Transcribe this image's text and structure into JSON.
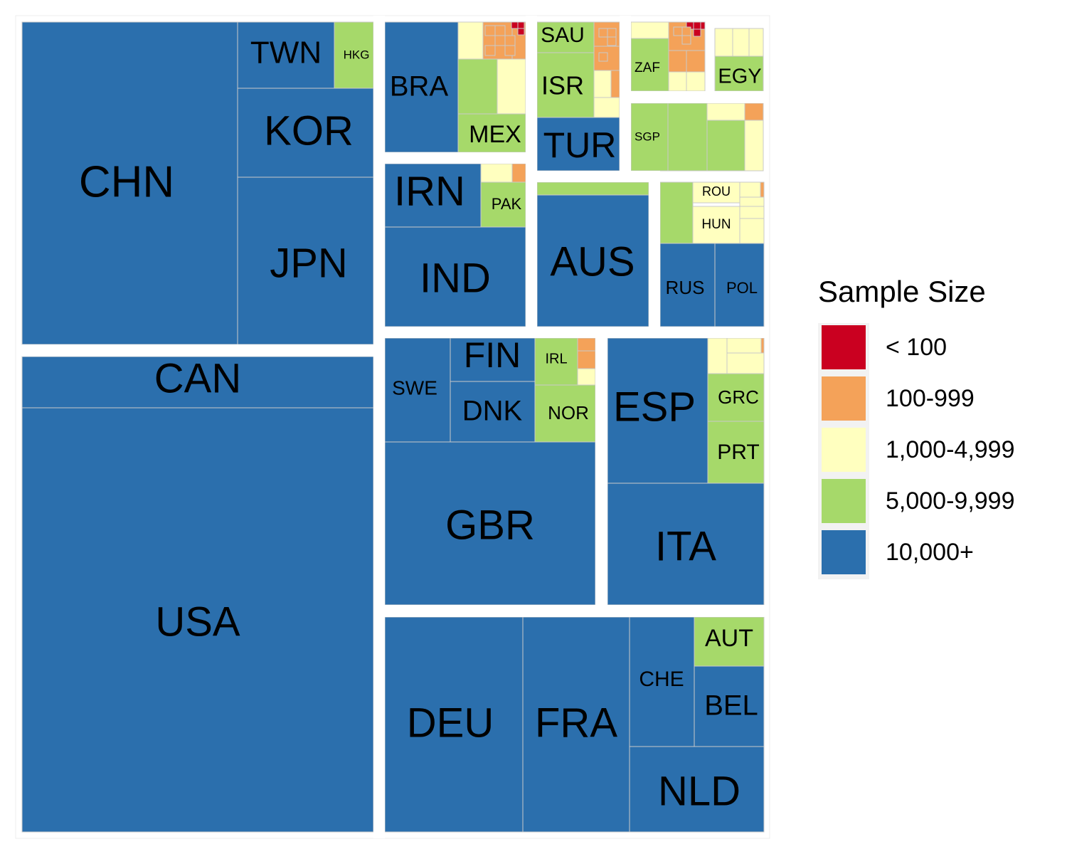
{
  "chart_data": {
    "type": "treemap",
    "legend": {
      "title": "Sample Size",
      "position": "right",
      "classes": [
        {
          "label": "< 100",
          "color": "#ca0020"
        },
        {
          "label": "100-999",
          "color": "#f4a259"
        },
        {
          "label": "1,000-4,999",
          "color": "#ffffbf"
        },
        {
          "label": "5,000-9,999",
          "color": "#a6d96a"
        },
        {
          "label": "10,000+",
          "color": "#2b6fad"
        }
      ]
    },
    "labeled_tiles": [
      {
        "name": "CHN",
        "class": "10,000+"
      },
      {
        "name": "TWN",
        "class": "10,000+"
      },
      {
        "name": "HKG",
        "class": "5,000-9,999"
      },
      {
        "name": "KOR",
        "class": "10,000+"
      },
      {
        "name": "JPN",
        "class": "10,000+"
      },
      {
        "name": "CAN",
        "class": "10,000+"
      },
      {
        "name": "USA",
        "class": "10,000+"
      },
      {
        "name": "BRA",
        "class": "10,000+"
      },
      {
        "name": "MEX",
        "class": "5,000-9,999"
      },
      {
        "name": "SAU",
        "class": "5,000-9,999"
      },
      {
        "name": "ISR",
        "class": "5,000-9,999"
      },
      {
        "name": "TUR",
        "class": "10,000+"
      },
      {
        "name": "ZAF",
        "class": "5,000-9,999"
      },
      {
        "name": "EGY",
        "class": "5,000-9,999"
      },
      {
        "name": "SGP",
        "class": "5,000-9,999"
      },
      {
        "name": "IRN",
        "class": "10,000+"
      },
      {
        "name": "PAK",
        "class": "5,000-9,999"
      },
      {
        "name": "IND",
        "class": "10,000+"
      },
      {
        "name": "AUS",
        "class": "10,000+"
      },
      {
        "name": "ROU",
        "class": "1,000-4,999"
      },
      {
        "name": "HUN",
        "class": "1,000-4,999"
      },
      {
        "name": "RUS",
        "class": "10,000+"
      },
      {
        "name": "POL",
        "class": "10,000+"
      },
      {
        "name": "SWE",
        "class": "10,000+"
      },
      {
        "name": "FIN",
        "class": "10,000+"
      },
      {
        "name": "DNK",
        "class": "10,000+"
      },
      {
        "name": "IRL",
        "class": "5,000-9,999"
      },
      {
        "name": "NOR",
        "class": "5,000-9,999"
      },
      {
        "name": "GBR",
        "class": "10,000+"
      },
      {
        "name": "ESP",
        "class": "10,000+"
      },
      {
        "name": "GRC",
        "class": "5,000-9,999"
      },
      {
        "name": "PRT",
        "class": "5,000-9,999"
      },
      {
        "name": "ITA",
        "class": "10,000+"
      },
      {
        "name": "DEU",
        "class": "10,000+"
      },
      {
        "name": "FRA",
        "class": "10,000+"
      },
      {
        "name": "CHE",
        "class": "10,000+"
      },
      {
        "name": "AUT",
        "class": "5,000-9,999"
      },
      {
        "name": "BEL",
        "class": "10,000+"
      },
      {
        "name": "NLD",
        "class": "10,000+"
      }
    ]
  }
}
